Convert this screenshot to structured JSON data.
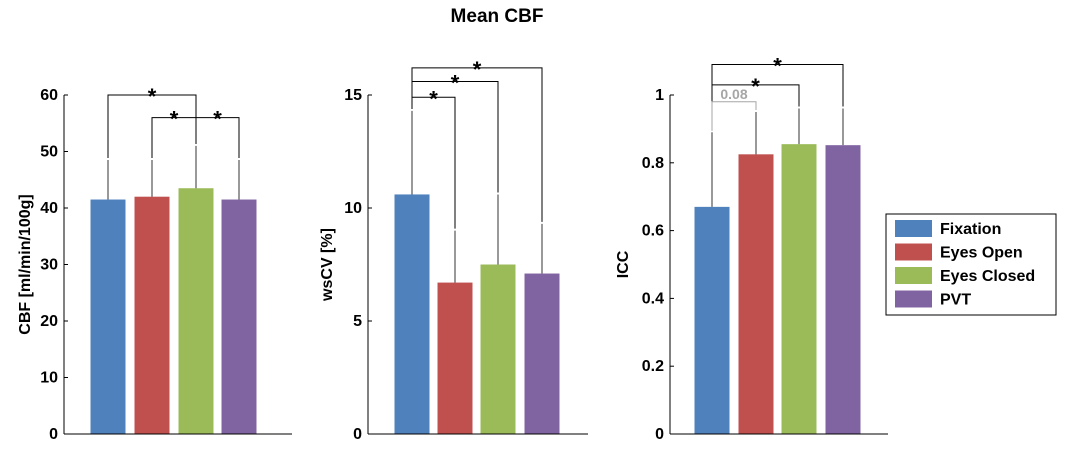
{
  "title": "Mean CBF",
  "colors": {
    "Fixation": "#4f81bd",
    "Eyes Open": "#c0504d",
    "Eyes Closed": "#9bbb59",
    "PVT": "#8064a2",
    "grey_annotation": "#a6a6a6"
  },
  "legend": {
    "placement": "right",
    "entries": [
      "Fixation",
      "Eyes Open",
      "Eyes Closed",
      "PVT"
    ]
  },
  "chart_data": [
    {
      "type": "bar",
      "title": "Mean CBF",
      "xlabel": "",
      "ylabel": "CBF [ml/min/100g]",
      "categories": [
        "Fixation",
        "Eyes Open",
        "Eyes Closed",
        "PVT"
      ],
      "values": [
        41.5,
        42.0,
        43.5,
        41.5
      ],
      "error_upper": [
        48.5,
        48.5,
        51.0,
        48.5
      ],
      "ylim": [
        0,
        60
      ],
      "yticks": [
        "0",
        "10",
        "20",
        "30",
        "40",
        "50",
        "60"
      ],
      "grid": false,
      "significance": [
        {
          "from": 0,
          "to": 2,
          "label": "*",
          "level": 60
        },
        {
          "from": 1,
          "to": 2,
          "label": "*",
          "level": 56
        },
        {
          "from": 2,
          "to": 3,
          "label": "*",
          "level": 56
        }
      ]
    },
    {
      "type": "bar",
      "title": "",
      "xlabel": "",
      "ylabel": "wsCV [%]",
      "categories": [
        "Fixation",
        "Eyes Open",
        "Eyes Closed",
        "PVT"
      ],
      "values": [
        10.6,
        6.7,
        7.5,
        7.1
      ],
      "error_upper": [
        14.3,
        9.0,
        10.6,
        9.3
      ],
      "ylim": [
        0,
        15
      ],
      "yticks": [
        "0",
        "5",
        "10",
        "15"
      ],
      "grid": false,
      "significance": [
        {
          "from": 0,
          "to": 3,
          "label": "*",
          "level": 16.2
        },
        {
          "from": 0,
          "to": 2,
          "label": "*",
          "level": 15.6
        },
        {
          "from": 0,
          "to": 1,
          "label": "*",
          "level": 14.9
        }
      ]
    },
    {
      "type": "bar",
      "title": "",
      "xlabel": "",
      "ylabel": "ICC",
      "categories": [
        "Fixation",
        "Eyes Open",
        "Eyes Closed",
        "PVT"
      ],
      "values": [
        0.67,
        0.825,
        0.855,
        0.852
      ],
      "error_upper": [
        0.89,
        0.95,
        0.96,
        0.96
      ],
      "ylim": [
        0,
        1
      ],
      "yticks": [
        "0",
        "0.2",
        "0.4",
        "0.6",
        "0.8",
        "1"
      ],
      "grid": false,
      "significance": [
        {
          "from": 0,
          "to": 3,
          "label": "*",
          "level": 1.09
        },
        {
          "from": 0,
          "to": 2,
          "label": "*",
          "level": 1.03
        },
        {
          "from": 0,
          "to": 1,
          "label": "0.08",
          "level": 0.98,
          "muted": true
        }
      ]
    }
  ]
}
